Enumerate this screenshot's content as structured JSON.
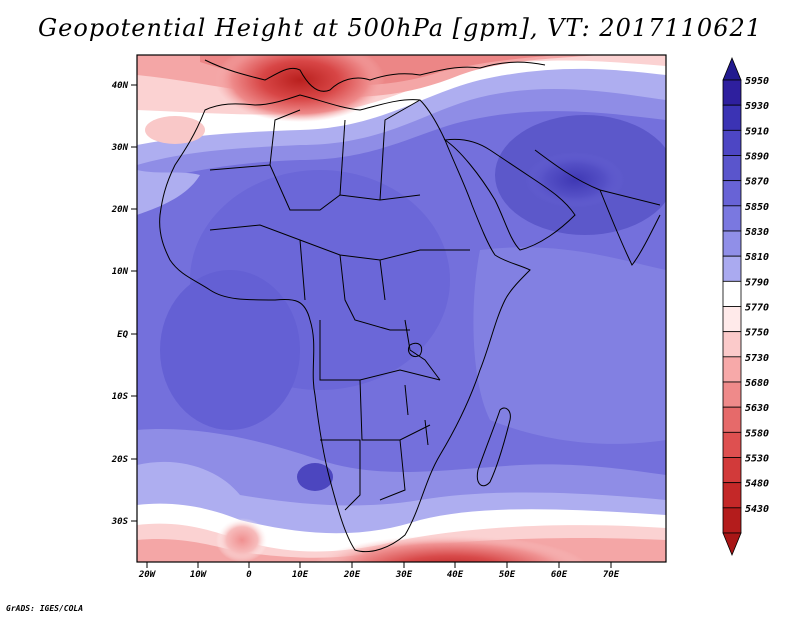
{
  "title": "Geopotential Height at 500hPa [gpm], VT: 2017110621",
  "footer": "GrADS: IGES/COLA",
  "map": {
    "lat_labels": [
      "40N",
      "30N",
      "20N",
      "10N",
      "EQ",
      "10S",
      "20S",
      "30S"
    ],
    "lon_labels": [
      "20W",
      "10W",
      "0",
      "10E",
      "20E",
      "30E",
      "40E",
      "50E",
      "60E",
      "70E"
    ],
    "lat_range": [
      -37,
      45
    ],
    "lon_range": [
      -22,
      80
    ]
  },
  "legend": {
    "levels": [
      "5950",
      "5930",
      "5910",
      "5890",
      "5870",
      "5850",
      "5830",
      "5810",
      "5790",
      "5770",
      "5750",
      "5730",
      "5680",
      "5630",
      "5580",
      "5530",
      "5480",
      "5430"
    ],
    "colors": [
      "#2e1f9e",
      "#3b33b4",
      "#4d46c4",
      "#5a55cc",
      "#6863d6",
      "#7a78e0",
      "#908fe8",
      "#aaaaf0",
      "#ffffff",
      "#ffeaea",
      "#fbcaca",
      "#f7a9a9",
      "#ef8a8a",
      "#e66a6a",
      "#de5050",
      "#d23a3a",
      "#c42828",
      "#b41c1c"
    ],
    "top_color": "#221a8f",
    "bottom_color": "#a81616"
  }
}
